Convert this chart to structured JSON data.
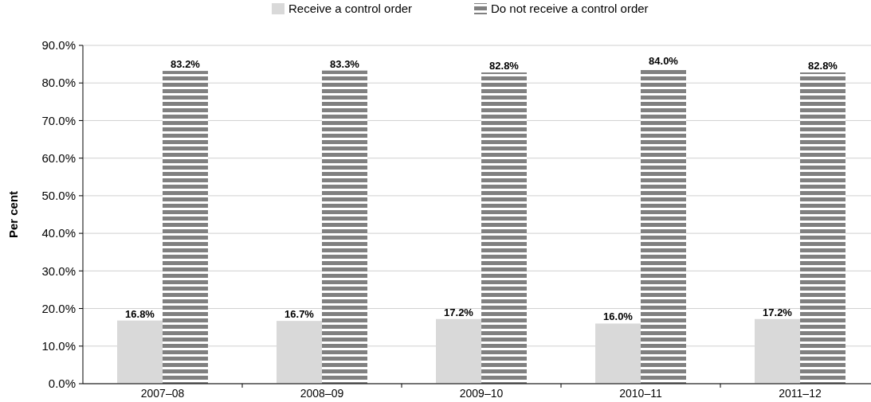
{
  "chart_data": {
    "type": "bar",
    "ylabel": "Per cent",
    "categories": [
      "2007–08",
      "2008–09",
      "2009–10",
      "2010–11",
      "2011–12"
    ],
    "series": [
      {
        "name": "Receive a control order",
        "color": "#d9d9d9",
        "values": [
          16.8,
          16.7,
          17.2,
          16.0,
          17.2
        ],
        "value_labels": [
          "16.8%",
          "16.7%",
          "17.2%",
          "16.0%",
          "17.2%"
        ]
      },
      {
        "name": "Do not receive a control order",
        "color": "#808080",
        "values": [
          83.2,
          83.3,
          82.8,
          84.0,
          82.8
        ],
        "value_labels": [
          "83.2%",
          "83.3%",
          "82.8%",
          "84.0%",
          "82.8%"
        ]
      }
    ],
    "ylim": [
      0,
      90
    ],
    "yticks": [
      {
        "value": 0,
        "label": "0.0%"
      },
      {
        "value": 10,
        "label": "10.0%"
      },
      {
        "value": 20,
        "label": "20.0%"
      },
      {
        "value": 30,
        "label": "30.0%"
      },
      {
        "value": 40,
        "label": "40.0%"
      },
      {
        "value": 50,
        "label": "50.0%"
      },
      {
        "value": 60,
        "label": "60.0%"
      },
      {
        "value": 70,
        "label": "70.0%"
      },
      {
        "value": 80,
        "label": "80.0%"
      },
      {
        "value": 90,
        "label": "90.0%"
      }
    ],
    "grid": "y",
    "legend": "top"
  }
}
